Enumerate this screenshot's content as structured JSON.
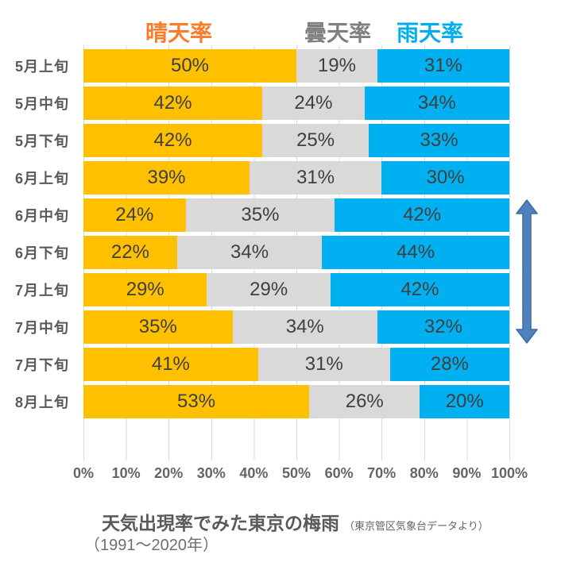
{
  "legend": {
    "items": [
      {
        "key": "sunny",
        "label": "晴天率",
        "color": "#f97c2b"
      },
      {
        "key": "cloudy",
        "label": "曇天率",
        "color": "#7f7f7f"
      },
      {
        "key": "rainy",
        "label": "雨天率",
        "color": "#00aeef"
      }
    ]
  },
  "chart_data": {
    "type": "bar",
    "stacked": true,
    "orientation": "horizontal",
    "unit": "%",
    "categories": [
      "5月上旬",
      "5月中旬",
      "5月下旬",
      "6月上旬",
      "6月中旬",
      "6月下旬",
      "7月上旬",
      "7月中旬",
      "7月下旬",
      "8月上旬"
    ],
    "series": [
      {
        "key": "sunny",
        "name": "晴天率",
        "color": "#FFC000",
        "values": [
          50,
          42,
          42,
          39,
          24,
          22,
          29,
          35,
          41,
          53
        ]
      },
      {
        "key": "cloudy",
        "name": "曇天率",
        "color": "#D9D9D9",
        "values": [
          19,
          24,
          25,
          31,
          35,
          34,
          29,
          34,
          31,
          26
        ]
      },
      {
        "key": "rainy",
        "name": "雨天率",
        "color": "#00B0F0",
        "values": [
          31,
          34,
          33,
          30,
          42,
          44,
          42,
          32,
          28,
          20
        ]
      }
    ],
    "x_ticks": [
      "0%",
      "10%",
      "20%",
      "30%",
      "40%",
      "50%",
      "60%",
      "70%",
      "80%",
      "90%",
      "100%"
    ],
    "xlim": [
      0,
      100
    ],
    "grid": "vertical",
    "legend_position": "top"
  },
  "annotation": {
    "arrow": {
      "shape": "double-headed-vertical-arrow",
      "color": "#4F81BD",
      "border_color": "#3A6BA5",
      "spans_categories": [
        "6月中旬",
        "6月下旬",
        "7月上旬"
      ]
    }
  },
  "title": {
    "main": "天気出現率でみた東京の梅雨",
    "source": "（東京管区気象台データより）",
    "period": "（1991〜2020年）"
  }
}
